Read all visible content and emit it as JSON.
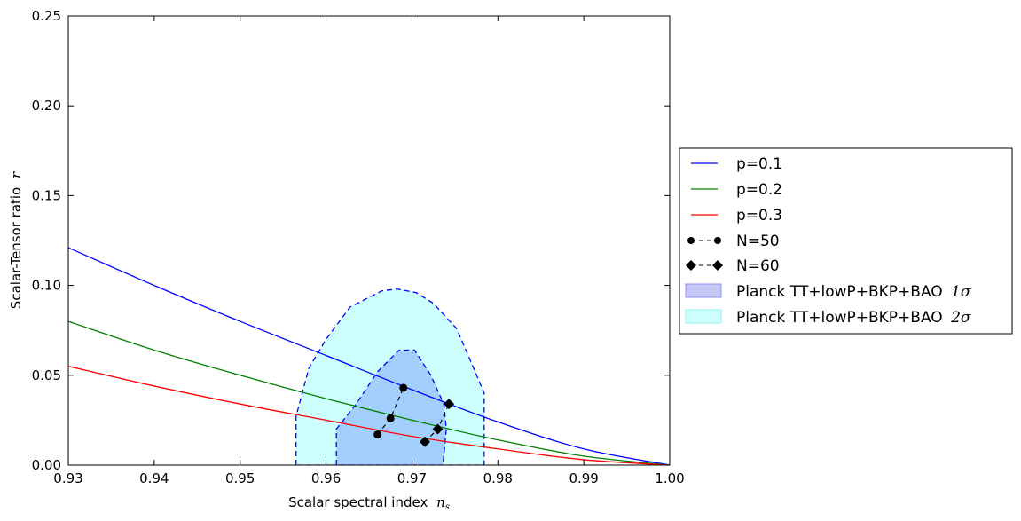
{
  "chart_data": {
    "type": "line",
    "xlabel": "Scalar spectral index",
    "xlabel_symbol": "n",
    "xlabel_symbol_sub": "s",
    "ylabel": "Scalar-Tensor ratio",
    "ylabel_symbol": "r",
    "xlim": [
      0.93,
      1.0
    ],
    "ylim": [
      0.0,
      0.25
    ],
    "x_ticks": [
      "0.93",
      "0.94",
      "0.95",
      "0.96",
      "0.97",
      "0.98",
      "0.99",
      "1.00"
    ],
    "y_ticks": [
      "0.00",
      "0.05",
      "0.10",
      "0.15",
      "0.20",
      "0.25"
    ],
    "grid": false,
    "legend_position": "outside-right",
    "series": [
      {
        "name": "p=0.1",
        "kind": "line",
        "color": "#0000ff",
        "x": [
          0.93,
          0.94,
          0.95,
          0.96,
          0.97,
          0.98,
          0.99,
          1.0
        ],
        "y": [
          0.121,
          0.1,
          0.08,
          0.061,
          0.042,
          0.024,
          0.009,
          0.0
        ]
      },
      {
        "name": "p=0.2",
        "kind": "line",
        "color": "#008000",
        "x": [
          0.93,
          0.94,
          0.95,
          0.96,
          0.97,
          0.98,
          0.99,
          1.0
        ],
        "y": [
          0.08,
          0.064,
          0.05,
          0.037,
          0.025,
          0.014,
          0.005,
          0.0
        ]
      },
      {
        "name": "p=0.3",
        "kind": "line",
        "color": "#ff0000",
        "x": [
          0.93,
          0.94,
          0.95,
          0.96,
          0.97,
          0.98,
          0.99,
          1.0
        ],
        "y": [
          0.055,
          0.044,
          0.034,
          0.025,
          0.016,
          0.009,
          0.003,
          0.0
        ]
      },
      {
        "name": "N=50",
        "kind": "marker-line",
        "marker": "circle",
        "color": "#000000",
        "x": [
          0.966,
          0.9675,
          0.969
        ],
        "y": [
          0.017,
          0.026,
          0.043
        ]
      },
      {
        "name": "N=60",
        "kind": "marker-line",
        "marker": "diamond",
        "color": "#000000",
        "x": [
          0.9715,
          0.973,
          0.9743
        ],
        "y": [
          0.013,
          0.02,
          0.034
        ]
      }
    ],
    "regions": [
      {
        "name": "Planck TT+lowP+BKP+BAO",
        "sigma_label": "1σ",
        "fill": "#a2cffb",
        "legend_fill": "#c8c8f8",
        "edge": "#0000ff",
        "polygon": [
          [
            0.9612,
            0.0
          ],
          [
            0.9612,
            0.02
          ],
          [
            0.9635,
            0.034
          ],
          [
            0.966,
            0.052
          ],
          [
            0.9685,
            0.064
          ],
          [
            0.9703,
            0.064
          ],
          [
            0.9722,
            0.05
          ],
          [
            0.9737,
            0.034
          ],
          [
            0.974,
            0.02
          ],
          [
            0.9736,
            0.0
          ]
        ]
      },
      {
        "name": "Planck TT+lowP+BKP+BAO",
        "sigma_label": "2σ",
        "fill": "#ccfffe",
        "legend_fill": "#ccfffe",
        "edge": "#0000ff",
        "polygon": [
          [
            0.9565,
            0.0
          ],
          [
            0.9565,
            0.027
          ],
          [
            0.958,
            0.054
          ],
          [
            0.96,
            0.07
          ],
          [
            0.9628,
            0.088
          ],
          [
            0.9665,
            0.097
          ],
          [
            0.9683,
            0.098
          ],
          [
            0.9705,
            0.096
          ],
          [
            0.9725,
            0.09
          ],
          [
            0.9752,
            0.076
          ],
          [
            0.977,
            0.056
          ],
          [
            0.9784,
            0.04
          ],
          [
            0.9784,
            0.0
          ]
        ]
      }
    ]
  }
}
